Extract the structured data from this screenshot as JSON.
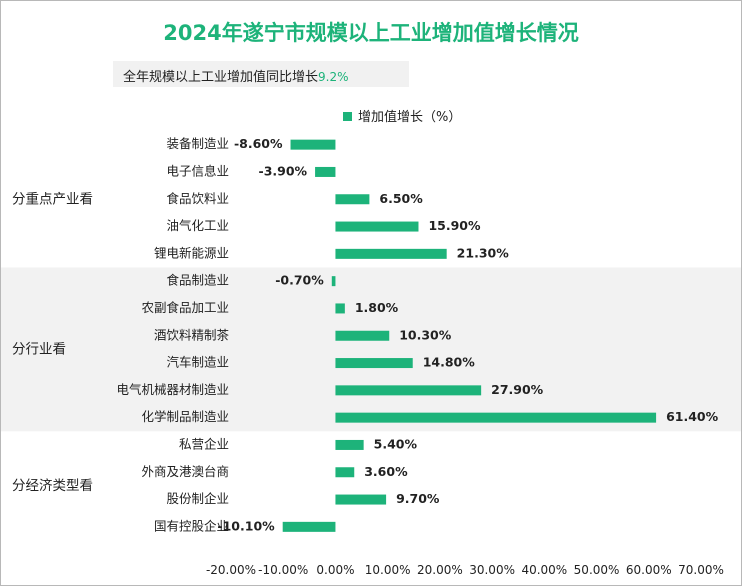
{
  "colors": {
    "bar": "#1db37a",
    "title": "#1db37a",
    "band": "#f2f2f2"
  },
  "chart_data": {
    "type": "bar",
    "orientation": "horizontal",
    "title": "2024年遂宁市规模以上工业增加值增长情况",
    "subtitle": {
      "text": "全年规模以上工业增加值同比增长",
      "value": "9.2%"
    },
    "legend": {
      "position": "top",
      "label": "增加值增长（%）"
    },
    "xlim": [
      -20,
      70
    ],
    "xticks": [
      -20,
      -10,
      0,
      10,
      20,
      30,
      40,
      50,
      60,
      70
    ],
    "xtick_labels": [
      "-20.00%",
      "-10.00%",
      "0.00%",
      "10.00%",
      "20.00%",
      "30.00%",
      "40.00%",
      "50.00%",
      "60.00%",
      "70.00%"
    ],
    "groups": [
      {
        "label": "分重点产业看",
        "shaded": false,
        "items": [
          {
            "category": "装备制造业",
            "value": -8.6,
            "label": "-8.60%"
          },
          {
            "category": "电子信息业",
            "value": -3.9,
            "label": "-3.90%"
          },
          {
            "category": "食品饮料业",
            "value": 6.5,
            "label": "6.50%"
          },
          {
            "category": "油气化工业",
            "value": 15.9,
            "label": "15.90%"
          },
          {
            "category": "锂电新能源业",
            "value": 21.3,
            "label": "21.30%"
          }
        ]
      },
      {
        "label": "分行业看",
        "shaded": true,
        "items": [
          {
            "category": "食品制造业",
            "value": -0.7,
            "label": "-0.70%"
          },
          {
            "category": "农副食品加工业",
            "value": 1.8,
            "label": "1.80%"
          },
          {
            "category": "酒饮料精制茶",
            "value": 10.3,
            "label": "10.30%"
          },
          {
            "category": "汽车制造业",
            "value": 14.8,
            "label": "14.80%"
          },
          {
            "category": "电气机械器材制造业",
            "value": 27.9,
            "label": "27.90%"
          },
          {
            "category": "化学制品制造业",
            "value": 61.4,
            "label": "61.40%"
          }
        ]
      },
      {
        "label": "分经济类型看",
        "shaded": false,
        "items": [
          {
            "category": "私营企业",
            "value": 5.4,
            "label": "5.40%"
          },
          {
            "category": "外商及港澳台商",
            "value": 3.6,
            "label": "3.60%"
          },
          {
            "category": "股份制企业",
            "value": 9.7,
            "label": "9.70%"
          },
          {
            "category": "国有控股企业",
            "value": -10.1,
            "label": "-10.10%"
          }
        ]
      }
    ]
  }
}
